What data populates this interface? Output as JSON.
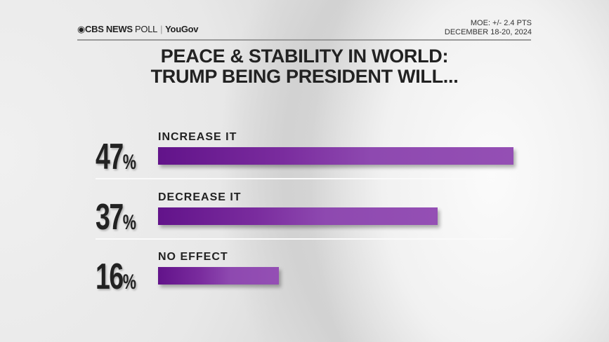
{
  "header": {
    "brand": "CBS NEWS",
    "brand_suffix": "POLL",
    "partner": "YouGov",
    "moe": "MOE: +/- 2.4 PTS",
    "dates": "DECEMBER 18-20, 2024"
  },
  "chart_data": {
    "type": "bar",
    "orientation": "horizontal",
    "title": "PEACE & STABILITY IN WORLD:",
    "subtitle": "TRUMP BEING PRESIDENT WILL...",
    "categories": [
      "INCREASE IT",
      "DECREASE IT",
      "NO EFFECT"
    ],
    "values": [
      47,
      37,
      16
    ],
    "value_labels": [
      "47",
      "37",
      "16"
    ],
    "unit": "%",
    "xlim": [
      0,
      47
    ],
    "grid": false,
    "bar_color": "#7a2c9e"
  }
}
